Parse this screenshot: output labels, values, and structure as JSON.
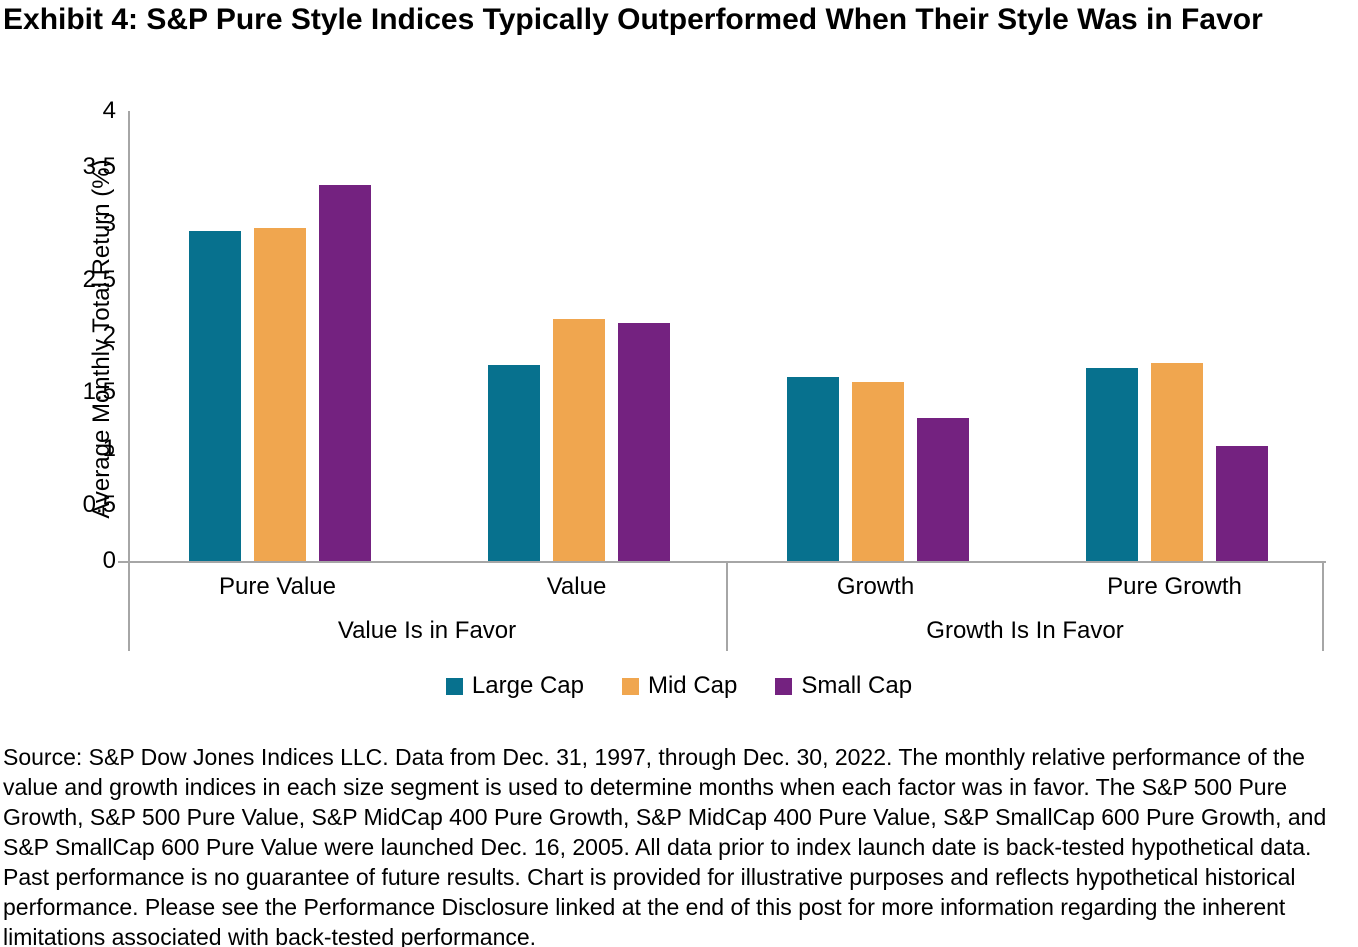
{
  "page": {
    "title": "Exhibit 4: S&P Pure Style Indices Typically Outperformed When Their Style Was in Favor",
    "source_text": "Source: S&P Dow Jones Indices LLC. Data from Dec. 31, 1997, through Dec. 30, 2022. The monthly relative performance of the value and growth indices in each size segment is used to determine months when each factor was in favor. The S&P 500 Pure Growth, S&P 500 Pure Value, S&P MidCap 400 Pure Growth, S&P MidCap 400 Pure Value, S&P SmallCap 600 Pure Growth, and S&P SmallCap 600 Pure Value were launched Dec. 16, 2005. All data prior to index launch date is back-tested hypothetical data. Past performance is no guarantee of future results. Chart is provided for illustrative purposes and reflects hypothetical historical performance. Please see the Performance Disclosure linked at the end of this post for more information regarding the inherent limitations associated with back-tested performance."
  },
  "chart_data": {
    "type": "bar",
    "title": "Exhibit 4: S&P Pure Style Indices Typically Outperformed When Their Style Was in Favor",
    "xlabel": "",
    "ylabel": "Average Monthly Total Return (%)",
    "ylim": [
      0,
      4
    ],
    "ytick_step": 0.5,
    "grid": false,
    "legend_position": "bottom",
    "axis_color": "#A6A6A6",
    "categories": [
      "Pure Value",
      "Value",
      "Growth",
      "Pure Growth"
    ],
    "category_groups": [
      {
        "label": "Value Is in Favor",
        "categories": [
          "Pure Value",
          "Value"
        ]
      },
      {
        "label": "Growth Is In Favor",
        "categories": [
          "Growth",
          "Pure Growth"
        ]
      }
    ],
    "series": [
      {
        "name": "Large Cap",
        "color": "#07718E",
        "values": [
          2.93,
          1.74,
          1.64,
          1.72
        ]
      },
      {
        "name": "Mid Cap",
        "color": "#F0A64F",
        "values": [
          2.96,
          2.15,
          1.59,
          1.76
        ]
      },
      {
        "name": "Small Cap",
        "color": "#742280",
        "values": [
          3.34,
          2.12,
          1.27,
          1.02
        ]
      }
    ]
  }
}
